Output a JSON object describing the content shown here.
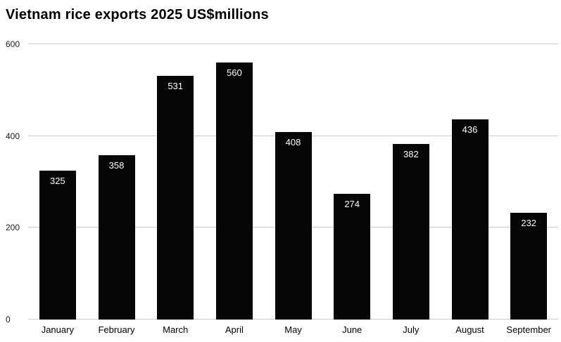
{
  "chart_data": {
    "type": "bar",
    "title": "Vietnam rice exports 2025 US$millions",
    "categories": [
      "January",
      "February",
      "March",
      "April",
      "May",
      "June",
      "July",
      "August",
      "September"
    ],
    "values": [
      325,
      358,
      531,
      560,
      408,
      274,
      382,
      436,
      232
    ],
    "xlabel": "",
    "ylabel": "",
    "ylim": [
      0,
      600
    ],
    "yticks": [
      0,
      200,
      400,
      600
    ],
    "grid": true,
    "legend": "none",
    "bar_color": "#060606",
    "value_label_color": "#ffffff",
    "gridline_color": "#cccccc",
    "axis_text_color": "#1a1a1a"
  }
}
